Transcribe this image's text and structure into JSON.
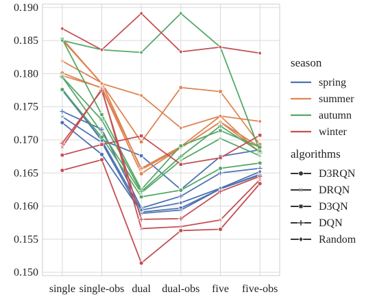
{
  "chart_data": {
    "type": "line",
    "categories": [
      "single",
      "single-obs",
      "dual",
      "dual-obs",
      "five",
      "five-obs"
    ],
    "ylim": [
      0.1495,
      0.1905
    ],
    "yticks": [
      0.15,
      0.155,
      0.16,
      0.165,
      0.17,
      0.175,
      0.18,
      0.185,
      0.19
    ],
    "ytick_labels": [
      "0.150",
      "0.155",
      "0.160",
      "0.165",
      "0.170",
      "0.175",
      "0.180",
      "0.185",
      "0.190"
    ],
    "grid": true,
    "legend": {
      "placement": "right",
      "hue_title": "season",
      "hue_entries": [
        {
          "label": "spring",
          "color": "#4c72b0"
        },
        {
          "label": "summer",
          "color": "#dd8452"
        },
        {
          "label": "autumn",
          "color": "#55a868"
        },
        {
          "label": "winter",
          "color": "#c44e52"
        }
      ],
      "style_title": "algorithms",
      "style_entries": [
        {
          "label": "D3RQN",
          "marker": "circle"
        },
        {
          "label": "DRQN",
          "marker": "x"
        },
        {
          "label": "D3QN",
          "marker": "square"
        },
        {
          "label": "DQN",
          "marker": "plus"
        },
        {
          "label": "Random",
          "marker": "diamond"
        }
      ]
    },
    "series": [
      {
        "season": "spring",
        "algorithm": "D3RQN",
        "marker": "circle",
        "color": "#4c72b0",
        "values": [
          0.1726,
          0.1678,
          0.1591,
          0.1597,
          0.1626,
          0.1648
        ]
      },
      {
        "season": "spring",
        "algorithm": "DRQN",
        "marker": "x",
        "color": "#4c72b0",
        "values": [
          0.1735,
          0.1696,
          0.1589,
          0.1594,
          0.1626,
          0.1647
        ]
      },
      {
        "season": "spring",
        "algorithm": "D3QN",
        "marker": "square",
        "color": "#4c72b0",
        "values": [
          0.1775,
          0.17,
          0.1676,
          0.1625,
          0.1675,
          0.1685
        ]
      },
      {
        "season": "spring",
        "algorithm": "DQN",
        "marker": "plus",
        "color": "#4c72b0",
        "values": [
          0.1743,
          0.1716,
          0.1597,
          0.1615,
          0.165,
          0.1657
        ]
      },
      {
        "season": "spring",
        "algorithm": "Random",
        "marker": "diamond",
        "color": "#4c72b0",
        "values": [
          0.1777,
          0.1699,
          0.1594,
          0.1605,
          0.1627,
          0.1652
        ]
      },
      {
        "season": "summer",
        "algorithm": "D3RQN",
        "marker": "circle",
        "color": "#dd8452",
        "values": [
          0.1801,
          0.1778,
          0.1649,
          0.1688,
          0.1727,
          0.1682
        ]
      },
      {
        "season": "summer",
        "algorithm": "DRQN",
        "marker": "x",
        "color": "#dd8452",
        "values": [
          0.1819,
          0.1786,
          0.1655,
          0.1688,
          0.1727,
          0.1689
        ]
      },
      {
        "season": "summer",
        "algorithm": "D3QN",
        "marker": "square",
        "color": "#dd8452",
        "values": [
          0.1851,
          0.1785,
          0.1697,
          0.1779,
          0.1773,
          0.1693
        ]
      },
      {
        "season": "summer",
        "algorithm": "DQN",
        "marker": "plus",
        "color": "#dd8452",
        "values": [
          0.1797,
          0.1779,
          0.1657,
          0.169,
          0.1736,
          0.168
        ]
      },
      {
        "season": "summer",
        "algorithm": "Random",
        "marker": "diamond",
        "color": "#dd8452",
        "values": [
          0.1853,
          0.1785,
          0.1767,
          0.1718,
          0.1736,
          0.1728
        ]
      },
      {
        "season": "autumn",
        "algorithm": "D3RQN",
        "marker": "circle",
        "color": "#55a868",
        "values": [
          0.1776,
          0.1704,
          0.1614,
          0.1624,
          0.1657,
          0.1665
        ]
      },
      {
        "season": "autumn",
        "algorithm": "DRQN",
        "marker": "x",
        "color": "#55a868",
        "values": [
          0.1795,
          0.1711,
          0.162,
          0.1669,
          0.1702,
          0.1676
        ]
      },
      {
        "season": "autumn",
        "algorithm": "D3QN",
        "marker": "square",
        "color": "#55a868",
        "values": [
          0.1852,
          0.1738,
          0.1625,
          0.1691,
          0.1714,
          0.1689
        ]
      },
      {
        "season": "autumn",
        "algorithm": "DQN",
        "marker": "plus",
        "color": "#55a868",
        "values": [
          0.1795,
          0.173,
          0.1622,
          0.1675,
          0.1721,
          0.1682
        ]
      },
      {
        "season": "autumn",
        "algorithm": "Random",
        "marker": "diamond",
        "color": "#55a868",
        "values": [
          0.185,
          0.1836,
          0.1832,
          0.1891,
          0.184,
          0.1683
        ]
      },
      {
        "season": "winter",
        "algorithm": "D3RQN",
        "marker": "circle",
        "color": "#c44e52",
        "values": [
          0.1654,
          0.167,
          0.1514,
          0.1563,
          0.1565,
          0.1634
        ]
      },
      {
        "season": "winter",
        "algorithm": "DRQN",
        "marker": "x",
        "color": "#c44e52",
        "values": [
          0.1689,
          0.1777,
          0.1566,
          0.1569,
          0.1579,
          0.164
        ]
      },
      {
        "season": "winter",
        "algorithm": "D3QN",
        "marker": "square",
        "color": "#c44e52",
        "values": [
          0.1677,
          0.1693,
          0.1706,
          0.1663,
          0.1673,
          0.1707
        ]
      },
      {
        "season": "winter",
        "algorithm": "DQN",
        "marker": "plus",
        "color": "#c44e52",
        "values": [
          0.1695,
          0.1775,
          0.158,
          0.1581,
          0.1622,
          0.1645
        ]
      },
      {
        "season": "winter",
        "algorithm": "Random",
        "marker": "diamond",
        "color": "#c44e52",
        "values": [
          0.1868,
          0.1836,
          0.1891,
          0.1833,
          0.184,
          0.1831
        ]
      }
    ]
  }
}
